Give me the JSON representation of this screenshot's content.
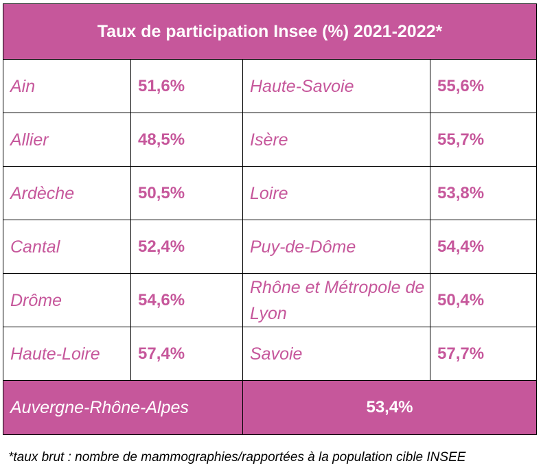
{
  "table": {
    "title": "Taux de participation Insee (%) 2021-2022*",
    "rows": [
      {
        "left_name": "Ain",
        "left_value": "51,6%",
        "right_name": "Haute-Savoie",
        "right_value": "55,6%"
      },
      {
        "left_name": "Allier",
        "left_value": "48,5%",
        "right_name": "Isère",
        "right_value": "55,7%"
      },
      {
        "left_name": "Ardèche",
        "left_value": "50,5%",
        "right_name": "Loire",
        "right_value": "53,8%"
      },
      {
        "left_name": "Cantal",
        "left_value": "52,4%",
        "right_name": "Puy-de-Dôme",
        "right_value": "54,4%"
      },
      {
        "left_name": "Drôme",
        "left_value": "54,6%",
        "right_name": "Rhône et Métropole de Lyon",
        "right_value": "50,4%"
      },
      {
        "left_name": "Haute-Loire",
        "left_value": "57,4%",
        "right_name": "Savoie",
        "right_value": "57,7%"
      }
    ],
    "total": {
      "name": "Auvergne-Rhône-Alpes",
      "value": "53,4%"
    }
  },
  "footnote": "*taux brut : nombre de mammographies/rapportées à la population cible INSEE",
  "colors": {
    "accent": "#c6579b",
    "border": "#000000",
    "header_text": "#ffffff"
  }
}
